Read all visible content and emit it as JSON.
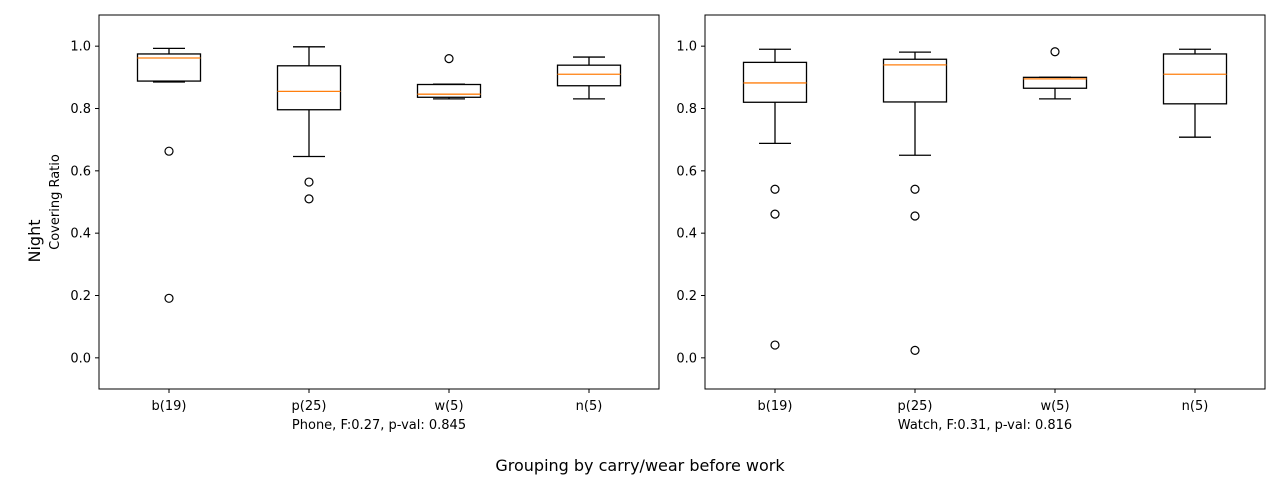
{
  "figure": {
    "row_label": "Night",
    "ylabel": "Covering Ratio",
    "suptitle": "Grouping by carry/wear before work"
  },
  "chart_data": [
    {
      "type": "box",
      "xlabel": "Phone, F:0.27, p-val: 0.845",
      "ylabel": "Covering Ratio",
      "ylim": [
        -0.1,
        1.1
      ],
      "yticks": [
        "0.0",
        "0.2",
        "0.4",
        "0.6",
        "0.8",
        "1.0"
      ],
      "categories": [
        "b(19)",
        "p(25)",
        "w(5)",
        "n(5)"
      ],
      "boxes": [
        {
          "whisker_low": 0.885,
          "q1": 0.888,
          "median": 0.962,
          "q3": 0.975,
          "whisker_high": 0.993,
          "outliers": [
            0.663,
            0.191
          ]
        },
        {
          "whisker_low": 0.646,
          "q1": 0.796,
          "median": 0.855,
          "q3": 0.937,
          "whisker_high": 0.998,
          "outliers": [
            0.564,
            0.51
          ]
        },
        {
          "whisker_low": 0.831,
          "q1": 0.836,
          "median": 0.846,
          "q3": 0.877,
          "whisker_high": 0.878,
          "outliers": [
            0.96
          ]
        },
        {
          "whisker_low": 0.831,
          "q1": 0.873,
          "median": 0.91,
          "q3": 0.939,
          "whisker_high": 0.965,
          "outliers": []
        }
      ]
    },
    {
      "type": "box",
      "xlabel": "Watch, F:0.31, p-val: 0.816",
      "ylabel": "",
      "ylim": [
        -0.1,
        1.1
      ],
      "yticks": [
        "0.0",
        "0.2",
        "0.4",
        "0.6",
        "0.8",
        "1.0"
      ],
      "categories": [
        "b(19)",
        "p(25)",
        "w(5)",
        "n(5)"
      ],
      "boxes": [
        {
          "whisker_low": 0.688,
          "q1": 0.82,
          "median": 0.882,
          "q3": 0.948,
          "whisker_high": 0.99,
          "outliers": [
            0.541,
            0.461,
            0.041
          ]
        },
        {
          "whisker_low": 0.65,
          "q1": 0.821,
          "median": 0.94,
          "q3": 0.958,
          "whisker_high": 0.981,
          "outliers": [
            0.541,
            0.455,
            0.024
          ]
        },
        {
          "whisker_low": 0.831,
          "q1": 0.865,
          "median": 0.895,
          "q3": 0.9,
          "whisker_high": 0.9,
          "outliers": [
            0.982
          ]
        },
        {
          "whisker_low": 0.708,
          "q1": 0.815,
          "median": 0.91,
          "q3": 0.975,
          "whisker_high": 0.99,
          "outliers": []
        }
      ]
    }
  ],
  "colors": {
    "box": "#000000",
    "median": "#ff7f0e",
    "background": "#ffffff"
  }
}
